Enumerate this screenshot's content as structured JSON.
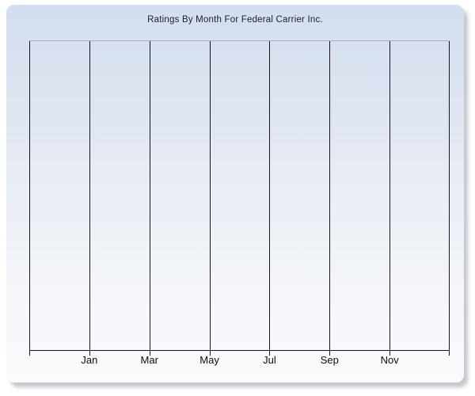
{
  "window": {
    "background_color": "#ffffff",
    "panel_gradient_top": "#d3deee",
    "panel_gradient_bottom": "#fafbfd",
    "title_text_color": "#1c1c38",
    "gridline_color": "#16161e",
    "plot_top_border_color": "#a4acbb",
    "tick_label_color": "#0d0d12"
  },
  "chart": {
    "title": "Ratings By Month For Federal Carrier Inc."
  },
  "chart_data": {
    "type": "line",
    "title": "Ratings By Month For Federal Carrier Inc.",
    "xlabel": "",
    "ylabel": "",
    "categories": [
      "Jan",
      "Mar",
      "May",
      "Jul",
      "Sep",
      "Nov"
    ],
    "series": [],
    "x_gridline_count": 8,
    "x_label_interval_fraction": 0.142857,
    "grid": "vertical-only",
    "y_axis_ticks": "none",
    "legend": "none",
    "plot_empty": true
  }
}
